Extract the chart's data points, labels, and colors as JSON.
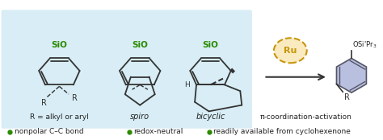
{
  "bg_color": "#ffffff",
  "panel_bg": "#d8edf5",
  "sio_color": "#2a8a00",
  "bullet_color": "#2a8a00",
  "text_color": "#222222",
  "bond_color": "#333333",
  "ru_edge_color": "#c8960a",
  "ru_fill": "#faeac0",
  "arrow_color": "#333333",
  "phenyl_fill": "#b8bfdf",
  "phenyl_edge": "#555566",
  "label1": "R = alkyl or aryl",
  "label2": "spiro",
  "label3": "bicyclic",
  "label4": "π-coordination-activation",
  "bullet1": "nonpolar C–C bond",
  "bullet2": "redox-neutral",
  "bullet3": "readily available from cyclohexenone",
  "title_fontsize": 7.5,
  "label_fontsize": 7.0,
  "bullet_fontsize": 6.5
}
